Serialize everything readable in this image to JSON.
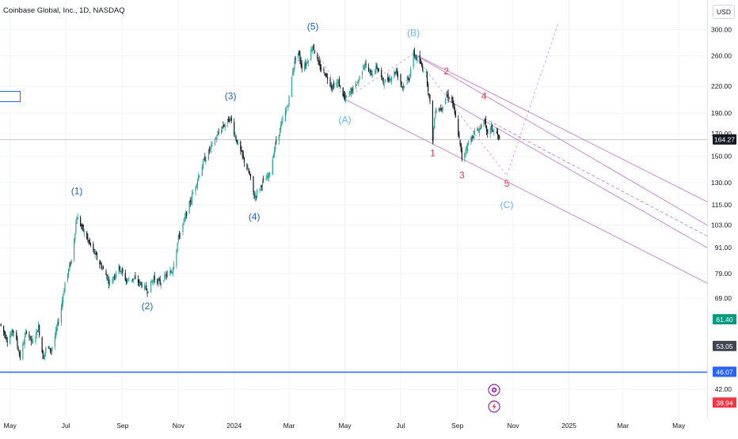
{
  "header": {
    "title": "Coinbase Global, Inc., 1D, NASDAQ",
    "currency_button": "USD"
  },
  "colors": {
    "up": "#26a69a",
    "down": "#131722",
    "wave_blue": "#1565c0",
    "wave_lightblue": "#64b5f6",
    "wave_red": "#e53950",
    "channel": "#ba68c8",
    "support": "#2962ff"
  },
  "chart_data": {
    "type": "candlestick",
    "symbol": "Coinbase Global, Inc.",
    "interval": "1D",
    "exchange": "NASDAQ",
    "scale": "log",
    "y_range": [
      38,
      310
    ],
    "x_range": [
      "2023-04-20",
      "2025-06-01"
    ],
    "y_ticks": [
      "300.00",
      "260.00",
      "220.00",
      "190.00",
      "170.00",
      "150.00",
      "130.00",
      "115.00",
      "103.00",
      "91.00",
      "79.00",
      "69.00",
      "42.00"
    ],
    "x_ticks": [
      {
        "label": "May",
        "date": "2023-05-01"
      },
      {
        "label": "Jul",
        "date": "2023-07-01"
      },
      {
        "label": "Sep",
        "date": "2023-09-01"
      },
      {
        "label": "Nov",
        "date": "2023-11-01"
      },
      {
        "label": "2024",
        "date": "2024-01-01"
      },
      {
        "label": "Mar",
        "date": "2024-03-01"
      },
      {
        "label": "May",
        "date": "2024-05-01"
      },
      {
        "label": "Jul",
        "date": "2024-07-01"
      },
      {
        "label": "Sep",
        "date": "2024-09-01"
      },
      {
        "label": "Nov",
        "date": "2024-11-01"
      },
      {
        "label": "2025",
        "date": "2025-01-01"
      },
      {
        "label": "Mar",
        "date": "2025-03-01"
      },
      {
        "label": "May",
        "date": "2025-05-01"
      }
    ],
    "price_path": [
      [
        "2023-04-20",
        60
      ],
      [
        "2023-04-28",
        55
      ],
      [
        "2023-05-05",
        58
      ],
      [
        "2023-05-12",
        50
      ],
      [
        "2023-05-19",
        58
      ],
      [
        "2023-05-25",
        54
      ],
      [
        "2023-06-01",
        59
      ],
      [
        "2023-06-06",
        50
      ],
      [
        "2023-06-10",
        53
      ],
      [
        "2023-06-15",
        52
      ],
      [
        "2023-06-20",
        57
      ],
      [
        "2023-06-25",
        64
      ],
      [
        "2023-06-30",
        75
      ],
      [
        "2023-07-07",
        85
      ],
      [
        "2023-07-13",
        108
      ],
      [
        "2023-07-20",
        100
      ],
      [
        "2023-07-28",
        92
      ],
      [
        "2023-08-05",
        85
      ],
      [
        "2023-08-12",
        80
      ],
      [
        "2023-08-18",
        75
      ],
      [
        "2023-08-28",
        82
      ],
      [
        "2023-09-05",
        76
      ],
      [
        "2023-09-12",
        77
      ],
      [
        "2023-09-20",
        75
      ],
      [
        "2023-09-28",
        72
      ],
      [
        "2023-10-05",
        77
      ],
      [
        "2023-10-12",
        75
      ],
      [
        "2023-10-18",
        78
      ],
      [
        "2023-10-25",
        80
      ],
      [
        "2023-11-01",
        96
      ],
      [
        "2023-11-10",
        110
      ],
      [
        "2023-11-18",
        125
      ],
      [
        "2023-11-28",
        145
      ],
      [
        "2023-12-08",
        160
      ],
      [
        "2023-12-18",
        175
      ],
      [
        "2023-12-28",
        185
      ],
      [
        "2024-01-03",
        165
      ],
      [
        "2024-01-10",
        150
      ],
      [
        "2024-01-18",
        135
      ],
      [
        "2024-01-23",
        120
      ],
      [
        "2024-02-01",
        130
      ],
      [
        "2024-02-08",
        135
      ],
      [
        "2024-02-15",
        160
      ],
      [
        "2024-02-22",
        180
      ],
      [
        "2024-02-29",
        200
      ],
      [
        "2024-03-05",
        240
      ],
      [
        "2024-03-10",
        270
      ],
      [
        "2024-03-15",
        245
      ],
      [
        "2024-03-20",
        250
      ],
      [
        "2024-03-27",
        275
      ],
      [
        "2024-04-03",
        245
      ],
      [
        "2024-04-10",
        235
      ],
      [
        "2024-04-17",
        220
      ],
      [
        "2024-04-24",
        225
      ],
      [
        "2024-05-01",
        205
      ],
      [
        "2024-05-08",
        215
      ],
      [
        "2024-05-15",
        225
      ],
      [
        "2024-05-22",
        250
      ],
      [
        "2024-05-29",
        235
      ],
      [
        "2024-06-05",
        245
      ],
      [
        "2024-06-12",
        225
      ],
      [
        "2024-06-19",
        230
      ],
      [
        "2024-06-26",
        240
      ],
      [
        "2024-07-03",
        220
      ],
      [
        "2024-07-10",
        230
      ],
      [
        "2024-07-15",
        263
      ],
      [
        "2024-07-22",
        250
      ],
      [
        "2024-07-29",
        235
      ],
      [
        "2024-08-02",
        200
      ],
      [
        "2024-08-05",
        165
      ],
      [
        "2024-08-08",
        195
      ],
      [
        "2024-08-14",
        195
      ],
      [
        "2024-08-20",
        210
      ],
      [
        "2024-08-26",
        205
      ],
      [
        "2024-09-02",
        170
      ],
      [
        "2024-09-06",
        148
      ],
      [
        "2024-09-12",
        160
      ],
      [
        "2024-09-19",
        170
      ],
      [
        "2024-09-26",
        175
      ],
      [
        "2024-09-30",
        185
      ],
      [
        "2024-10-03",
        170
      ],
      [
        "2024-10-08",
        175
      ],
      [
        "2024-10-14",
        170
      ],
      [
        "2024-10-17",
        164.27
      ]
    ],
    "current_price": "164.27",
    "price_labels": [
      {
        "value": "164.27",
        "color": "#131722",
        "price": 164.27
      },
      {
        "value": "61.40",
        "color": "#089981",
        "price": 61.4
      },
      {
        "value": "53.05",
        "color": "#434651",
        "price": 53.05
      },
      {
        "value": "46.07",
        "color": "#2962ff",
        "price": 46.07
      },
      {
        "value": "38.94",
        "color": "#f23645",
        "price": 38.94
      }
    ],
    "support_level": 46.07,
    "wave_labels": [
      {
        "text": "(1)",
        "date": "2023-07-13",
        "price": 122,
        "color": "wave_blue"
      },
      {
        "text": "(2)",
        "date": "2023-09-28",
        "price": 65,
        "color": "wave_blue"
      },
      {
        "text": "(3)",
        "date": "2023-12-28",
        "price": 205,
        "color": "wave_blue"
      },
      {
        "text": "(4)",
        "date": "2024-01-23",
        "price": 106,
        "color": "wave_blue"
      },
      {
        "text": "(5)",
        "date": "2024-03-27",
        "price": 300,
        "color": "wave_blue"
      },
      {
        "text": "(A)",
        "date": "2024-05-01",
        "price": 180,
        "color": "wave_lightblue"
      },
      {
        "text": "(B)",
        "date": "2024-07-15",
        "price": 290,
        "color": "wave_lightblue"
      },
      {
        "text": "(C)",
        "date": "2024-10-25",
        "price": 113,
        "color": "wave_lightblue"
      },
      {
        "text": "1",
        "date": "2024-08-05",
        "price": 150,
        "color": "wave_red"
      },
      {
        "text": "2",
        "date": "2024-08-20",
        "price": 235,
        "color": "wave_red"
      },
      {
        "text": "3",
        "date": "2024-09-06",
        "price": 133,
        "color": "wave_red"
      },
      {
        "text": "4",
        "date": "2024-09-30",
        "price": 205,
        "color": "wave_red"
      },
      {
        "text": "5",
        "date": "2024-10-25",
        "price": 127,
        "color": "wave_red"
      }
    ],
    "dashed_path": [
      [
        "2024-03-27",
        275
      ],
      [
        "2024-05-01",
        205
      ],
      [
        "2024-07-15",
        263
      ],
      [
        "2024-10-25",
        135
      ],
      [
        "2024-12-20",
        310
      ]
    ],
    "channel_lines": [
      {
        "from": [
          "2024-07-15",
          263
        ],
        "to": [
          "2025-06-01",
          117
        ],
        "style": "solid"
      },
      {
        "from": [
          "2024-05-01",
          205
        ],
        "to": [
          "2025-06-01",
          75
        ],
        "style": "solid"
      },
      {
        "from": [
          "2024-08-20",
          205
        ],
        "to": [
          "2025-06-01",
          91
        ],
        "style": "solid"
      },
      {
        "from": [
          "2024-09-30",
          185
        ],
        "to": [
          "2025-06-01",
          97
        ],
        "style": "dashed"
      },
      {
        "from": [
          "2024-07-15",
          263
        ],
        "to": [
          "2025-06-01",
          103
        ],
        "style": "solid"
      }
    ]
  }
}
